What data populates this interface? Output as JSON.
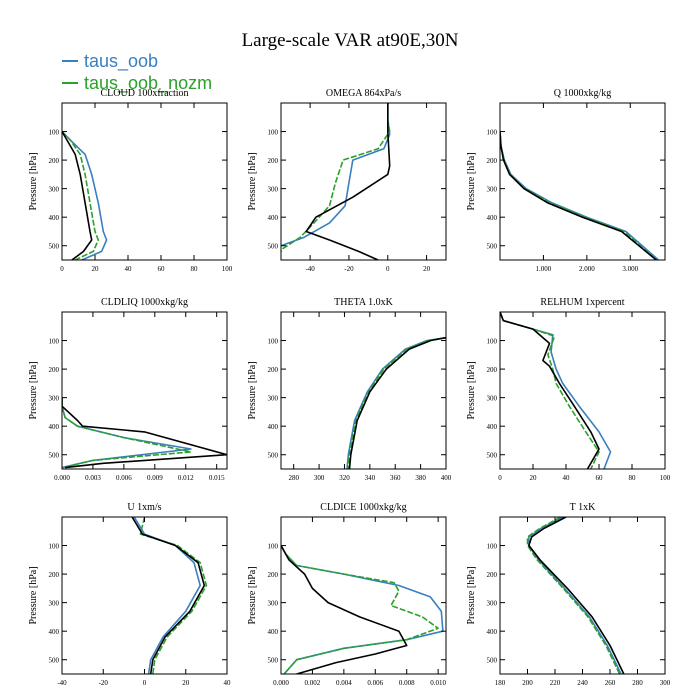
{
  "figure": {
    "title": "Large-scale VAR at90E,30N",
    "legend": [
      {
        "name": "taus_oob",
        "color": "#3a7fbf"
      },
      {
        "name": "taus_oob_nozm",
        "color": "#2ca02c"
      }
    ],
    "control_color": "#000000"
  },
  "chart_data": [
    {
      "type": "line",
      "title": "CLOUD  100xfraction",
      "ylabel": "Pressure [hPa]",
      "xlim": [
        0,
        100
      ],
      "xticks": [
        0,
        20,
        40,
        60,
        80,
        100
      ],
      "xticklabels": [
        "0",
        "20",
        "40",
        "60",
        "80",
        "100"
      ],
      "ylim": [
        0,
        550
      ],
      "yticks": [
        100,
        200,
        300,
        400,
        500
      ],
      "yticklabels": [
        "100",
        "200",
        "300",
        "400",
        "500"
      ],
      "series": [
        {
          "name": "taus_oob",
          "color": "#3a7fbf",
          "x": [
            0,
            5,
            14,
            18,
            22,
            25,
            27,
            24,
            12
          ],
          "y": [
            100,
            130,
            180,
            250,
            350,
            450,
            480,
            520,
            550
          ]
        },
        {
          "name": "taus_oob_nozm",
          "color": "#2ca02c",
          "dashed": true,
          "x": [
            0,
            5,
            11,
            14,
            17,
            20,
            22,
            19,
            8
          ],
          "y": [
            100,
            130,
            180,
            250,
            350,
            450,
            480,
            520,
            550
          ]
        },
        {
          "color": "#000000",
          "x": [
            0,
            3,
            8,
            11,
            14,
            17,
            18,
            13,
            6
          ],
          "y": [
            100,
            130,
            180,
            250,
            350,
            450,
            480,
            520,
            550
          ]
        }
      ]
    },
    {
      "type": "line",
      "title": "OMEGA  864xPa/s",
      "ylabel": "Pressure [hPa]",
      "xlim": [
        -55,
        30
      ],
      "xticks": [
        -40,
        -20,
        0,
        20
      ],
      "xticklabels": [
        "-40",
        "-20",
        "0",
        "20"
      ],
      "ylim": [
        0,
        550
      ],
      "yticks": [
        100,
        200,
        300,
        400,
        500
      ],
      "yticklabels": [
        "100",
        "200",
        "300",
        "400",
        "500"
      ],
      "series": [
        {
          "name": "taus_oob",
          "color": "#3a7fbf",
          "x": [
            0,
            0,
            1,
            -2,
            -18,
            -20,
            -22,
            -30,
            -43,
            -55
          ],
          "y": [
            0,
            60,
            110,
            160,
            200,
            280,
            360,
            420,
            470,
            500
          ]
        },
        {
          "name": "taus_oob_nozm",
          "color": "#2ca02c",
          "dashed": true,
          "x": [
            0,
            0,
            1,
            -5,
            -23,
            -27,
            -30,
            -38,
            -45,
            -54,
            -55
          ],
          "y": [
            0,
            60,
            100,
            160,
            200,
            280,
            360,
            420,
            470,
            510,
            520
          ]
        },
        {
          "color": "#000000",
          "x": [
            0,
            0,
            0,
            1,
            0,
            -9,
            -18,
            -37,
            -42,
            -30,
            -15,
            -5
          ],
          "y": [
            0,
            60,
            100,
            220,
            250,
            290,
            330,
            400,
            450,
            480,
            520,
            550
          ]
        }
      ]
    },
    {
      "type": "line",
      "title": "Q  1000xkg/kg",
      "ylabel": "Pressure [hPa]",
      "xlim": [
        0,
        3.8
      ],
      "xticks": [
        1,
        2,
        3
      ],
      "xticklabels": [
        "1.000",
        "2.000",
        "3.000"
      ],
      "ylim": [
        0,
        550
      ],
      "yticks": [
        100,
        200,
        300,
        400,
        500
      ],
      "yticklabels": [
        "100",
        "200",
        "300",
        "400",
        "500"
      ],
      "series": [
        {
          "name": "taus_oob",
          "color": "#3a7fbf",
          "x": [
            0,
            0.02,
            0.1,
            0.25,
            0.6,
            1.2,
            2.0,
            2.9,
            3.65
          ],
          "y": [
            100,
            150,
            200,
            250,
            300,
            350,
            400,
            450,
            550
          ]
        },
        {
          "name": "taus_oob_nozm",
          "color": "#2ca02c",
          "dashed": true,
          "x": [
            0,
            0.02,
            0.09,
            0.23,
            0.57,
            1.15,
            1.95,
            2.85,
            3.6
          ],
          "y": [
            100,
            150,
            200,
            250,
            300,
            350,
            400,
            450,
            550
          ]
        },
        {
          "color": "#000000",
          "x": [
            0,
            0.02,
            0.08,
            0.22,
            0.55,
            1.1,
            1.9,
            2.8,
            3.6
          ],
          "y": [
            100,
            150,
            200,
            250,
            300,
            350,
            400,
            450,
            550
          ]
        }
      ]
    },
    {
      "type": "line",
      "title": "CLDLIQ  1000xkg/kg",
      "ylabel": "Pressure [hPa]",
      "xlim": [
        0,
        0.016
      ],
      "xticks": [
        0,
        0.003,
        0.006,
        0.009,
        0.012,
        0.015
      ],
      "xticklabels": [
        "0.000",
        "0.003",
        "0.006",
        "0.009",
        "0.012",
        "0.015"
      ],
      "ylim": [
        0,
        550
      ],
      "yticks": [
        100,
        200,
        300,
        400,
        500
      ],
      "yticklabels": [
        "100",
        "200",
        "300",
        "400",
        "500"
      ],
      "series": [
        {
          "name": "taus_oob",
          "color": "#3a7fbf",
          "x": [
            0,
            0,
            0.0003,
            0.0015,
            0.006,
            0.0125,
            0.003,
            0
          ],
          "y": [
            300,
            330,
            370,
            400,
            440,
            480,
            520,
            545
          ]
        },
        {
          "name": "taus_oob_nozm",
          "color": "#2ca02c",
          "dashed": true,
          "x": [
            0,
            0,
            0.0003,
            0.0015,
            0.006,
            0.0125,
            0.003,
            0
          ],
          "y": [
            300,
            330,
            370,
            400,
            440,
            490,
            520,
            545
          ]
        },
        {
          "color": "#000000",
          "x": [
            0,
            0,
            0.0015,
            0.002,
            0.008,
            0.016,
            0.004,
            0.0003
          ],
          "y": [
            300,
            330,
            380,
            400,
            420,
            500,
            530,
            545
          ]
        }
      ]
    },
    {
      "type": "line",
      "title": "THETA  1.0xK",
      "ylabel": "Pressure [hPa]",
      "xlim": [
        270,
        400
      ],
      "xticks": [
        280,
        300,
        320,
        340,
        360,
        380,
        400
      ],
      "xticklabels": [
        "280",
        "300",
        "320",
        "340",
        "360",
        "380",
        "400"
      ],
      "ylim": [
        0,
        550
      ],
      "yticks": [
        100,
        200,
        300,
        400,
        500
      ],
      "yticklabels": [
        "100",
        "200",
        "300",
        "400",
        "500"
      ],
      "series": [
        {
          "name": "taus_oob",
          "color": "#3a7fbf",
          "x": [
            400,
            385,
            368,
            350,
            338,
            328,
            323,
            322
          ],
          "y": [
            90,
            100,
            130,
            200,
            280,
            380,
            500,
            550
          ]
        },
        {
          "name": "taus_oob_nozm",
          "color": "#2ca02c",
          "dashed": true,
          "x": [
            400,
            386,
            369,
            351,
            339,
            329,
            324,
            323
          ],
          "y": [
            90,
            100,
            130,
            200,
            280,
            380,
            500,
            550
          ]
        },
        {
          "color": "#000000",
          "x": [
            400,
            388,
            371,
            353,
            340,
            330,
            325,
            324
          ],
          "y": [
            90,
            100,
            130,
            200,
            280,
            380,
            500,
            550
          ]
        }
      ]
    },
    {
      "type": "line",
      "title": "RELHUM  1xpercent",
      "ylabel": "Pressure [hPa]",
      "xlim": [
        0,
        100
      ],
      "xticks": [
        0,
        20,
        40,
        60,
        80,
        100
      ],
      "xticklabels": [
        "0",
        "20",
        "40",
        "60",
        "80",
        "100"
      ],
      "ylim": [
        0,
        550
      ],
      "yticks": [
        100,
        200,
        300,
        400,
        500
      ],
      "yticklabels": [
        "100",
        "200",
        "300",
        "400",
        "500"
      ],
      "series": [
        {
          "name": "taus_oob",
          "color": "#3a7fbf",
          "x": [
            0,
            2,
            20,
            32,
            31,
            34,
            38,
            48,
            60,
            67,
            63
          ],
          "y": [
            0,
            30,
            60,
            80,
            140,
            200,
            250,
            330,
            420,
            490,
            550
          ]
        },
        {
          "name": "taus_oob_nozm",
          "color": "#2ca02c",
          "dashed": true,
          "x": [
            0,
            2,
            20,
            33,
            29,
            32,
            34,
            42,
            52,
            60,
            55
          ],
          "y": [
            0,
            30,
            60,
            85,
            150,
            200,
            250,
            330,
            420,
            490,
            550
          ]
        },
        {
          "color": "#000000",
          "x": [
            0,
            2,
            20,
            30,
            26,
            30,
            36,
            45,
            55,
            60,
            53
          ],
          "y": [
            0,
            30,
            60,
            110,
            170,
            190,
            250,
            330,
            420,
            480,
            550
          ]
        }
      ]
    },
    {
      "type": "line",
      "title": "U  1xm/s",
      "ylabel": "Pressure [hPa]",
      "xlim": [
        -40,
        40
      ],
      "xticks": [
        -40,
        -20,
        0,
        20,
        40
      ],
      "xticklabels": [
        "-40",
        "-20",
        "0",
        "20",
        "40"
      ],
      "ylim": [
        0,
        550
      ],
      "yticks": [
        100,
        200,
        300,
        400,
        500
      ],
      "yticklabels": [
        "100",
        "200",
        "300",
        "400",
        "500"
      ],
      "series": [
        {
          "name": "taus_oob",
          "color": "#3a7fbf",
          "x": [
            -5,
            0,
            15,
            24,
            27,
            20,
            9,
            3,
            2
          ],
          "y": [
            0,
            60,
            100,
            160,
            240,
            330,
            420,
            500,
            550
          ]
        },
        {
          "name": "taus_oob_nozm",
          "color": "#2ca02c",
          "dashed": true,
          "x": [
            0,
            -2,
            16,
            27,
            30,
            23,
            11,
            5,
            4
          ],
          "y": [
            0,
            60,
            100,
            160,
            240,
            330,
            420,
            500,
            550
          ]
        },
        {
          "color": "#000000",
          "x": [
            -6,
            -1,
            15,
            26,
            29,
            22,
            10,
            4,
            3
          ],
          "y": [
            0,
            60,
            100,
            160,
            240,
            330,
            420,
            500,
            550
          ]
        }
      ]
    },
    {
      "type": "line",
      "title": "CLDICE  1000xkg/kg",
      "ylabel": "Pressure [hPa]",
      "xlim": [
        0,
        0.0105
      ],
      "xticks": [
        0,
        0.002,
        0.004,
        0.006,
        0.008,
        0.01
      ],
      "xticklabels": [
        "0.000",
        "0.002",
        "0.004",
        "0.006",
        "0.008",
        "0.010"
      ],
      "ylim": [
        0,
        550
      ],
      "yticks": [
        100,
        200,
        300,
        400,
        500
      ],
      "yticklabels": [
        "100",
        "200",
        "300",
        "400",
        "500"
      ],
      "series": [
        {
          "name": "taus_oob",
          "color": "#3a7fbf",
          "x": [
            0,
            0.0003,
            0.001,
            0.004,
            0.0075,
            0.0095,
            0.0102,
            0.0103,
            0.008,
            0.004,
            0.001,
            0.0002
          ],
          "y": [
            100,
            130,
            170,
            200,
            240,
            280,
            330,
            400,
            430,
            460,
            500,
            550
          ]
        },
        {
          "name": "taus_oob_nozm",
          "color": "#2ca02c",
          "dashed": true,
          "x": [
            0,
            0.0003,
            0.001,
            0.004,
            0.0072,
            0.0075,
            0.007,
            0.009,
            0.01,
            0.008,
            0.004,
            0.001,
            0.0002
          ],
          "y": [
            100,
            130,
            170,
            200,
            230,
            260,
            310,
            350,
            390,
            430,
            460,
            500,
            550
          ]
        },
        {
          "color": "#000000",
          "x": [
            0,
            0.0005,
            0.0015,
            0.002,
            0.003,
            0.005,
            0.0075,
            0.008,
            0.006,
            0.0035,
            0.001
          ],
          "y": [
            100,
            150,
            200,
            250,
            300,
            350,
            400,
            450,
            480,
            510,
            550
          ]
        }
      ]
    },
    {
      "type": "line",
      "title": "T  1xK",
      "ylabel": "Pressure [hPa]",
      "xlim": [
        180,
        300
      ],
      "xticks": [
        180,
        200,
        220,
        240,
        260,
        280,
        300
      ],
      "xticklabels": [
        "180",
        "200",
        "220",
        "240",
        "260",
        "280",
        "300"
      ],
      "ylim": [
        0,
        550
      ],
      "yticks": [
        100,
        200,
        300,
        400,
        500
      ],
      "yticklabels": [
        "100",
        "200",
        "300",
        "400",
        "500"
      ],
      "series": [
        {
          "name": "taus_oob",
          "color": "#3a7fbf",
          "x": [
            226,
            210,
            201,
            201,
            208,
            227,
            245,
            258,
            268
          ],
          "y": [
            0,
            40,
            70,
            100,
            150,
            250,
            350,
            450,
            550
          ]
        },
        {
          "name": "taus_oob_nozm",
          "color": "#2ca02c",
          "dashed": true,
          "x": [
            224,
            209,
            200,
            200,
            207,
            226,
            244,
            257,
            267
          ],
          "y": [
            0,
            40,
            70,
            100,
            150,
            250,
            350,
            450,
            550
          ]
        },
        {
          "color": "#000000",
          "x": [
            228,
            212,
            203,
            201,
            209,
            229,
            247,
            260,
            270
          ],
          "y": [
            0,
            40,
            70,
            100,
            150,
            250,
            350,
            450,
            550
          ]
        }
      ]
    }
  ]
}
